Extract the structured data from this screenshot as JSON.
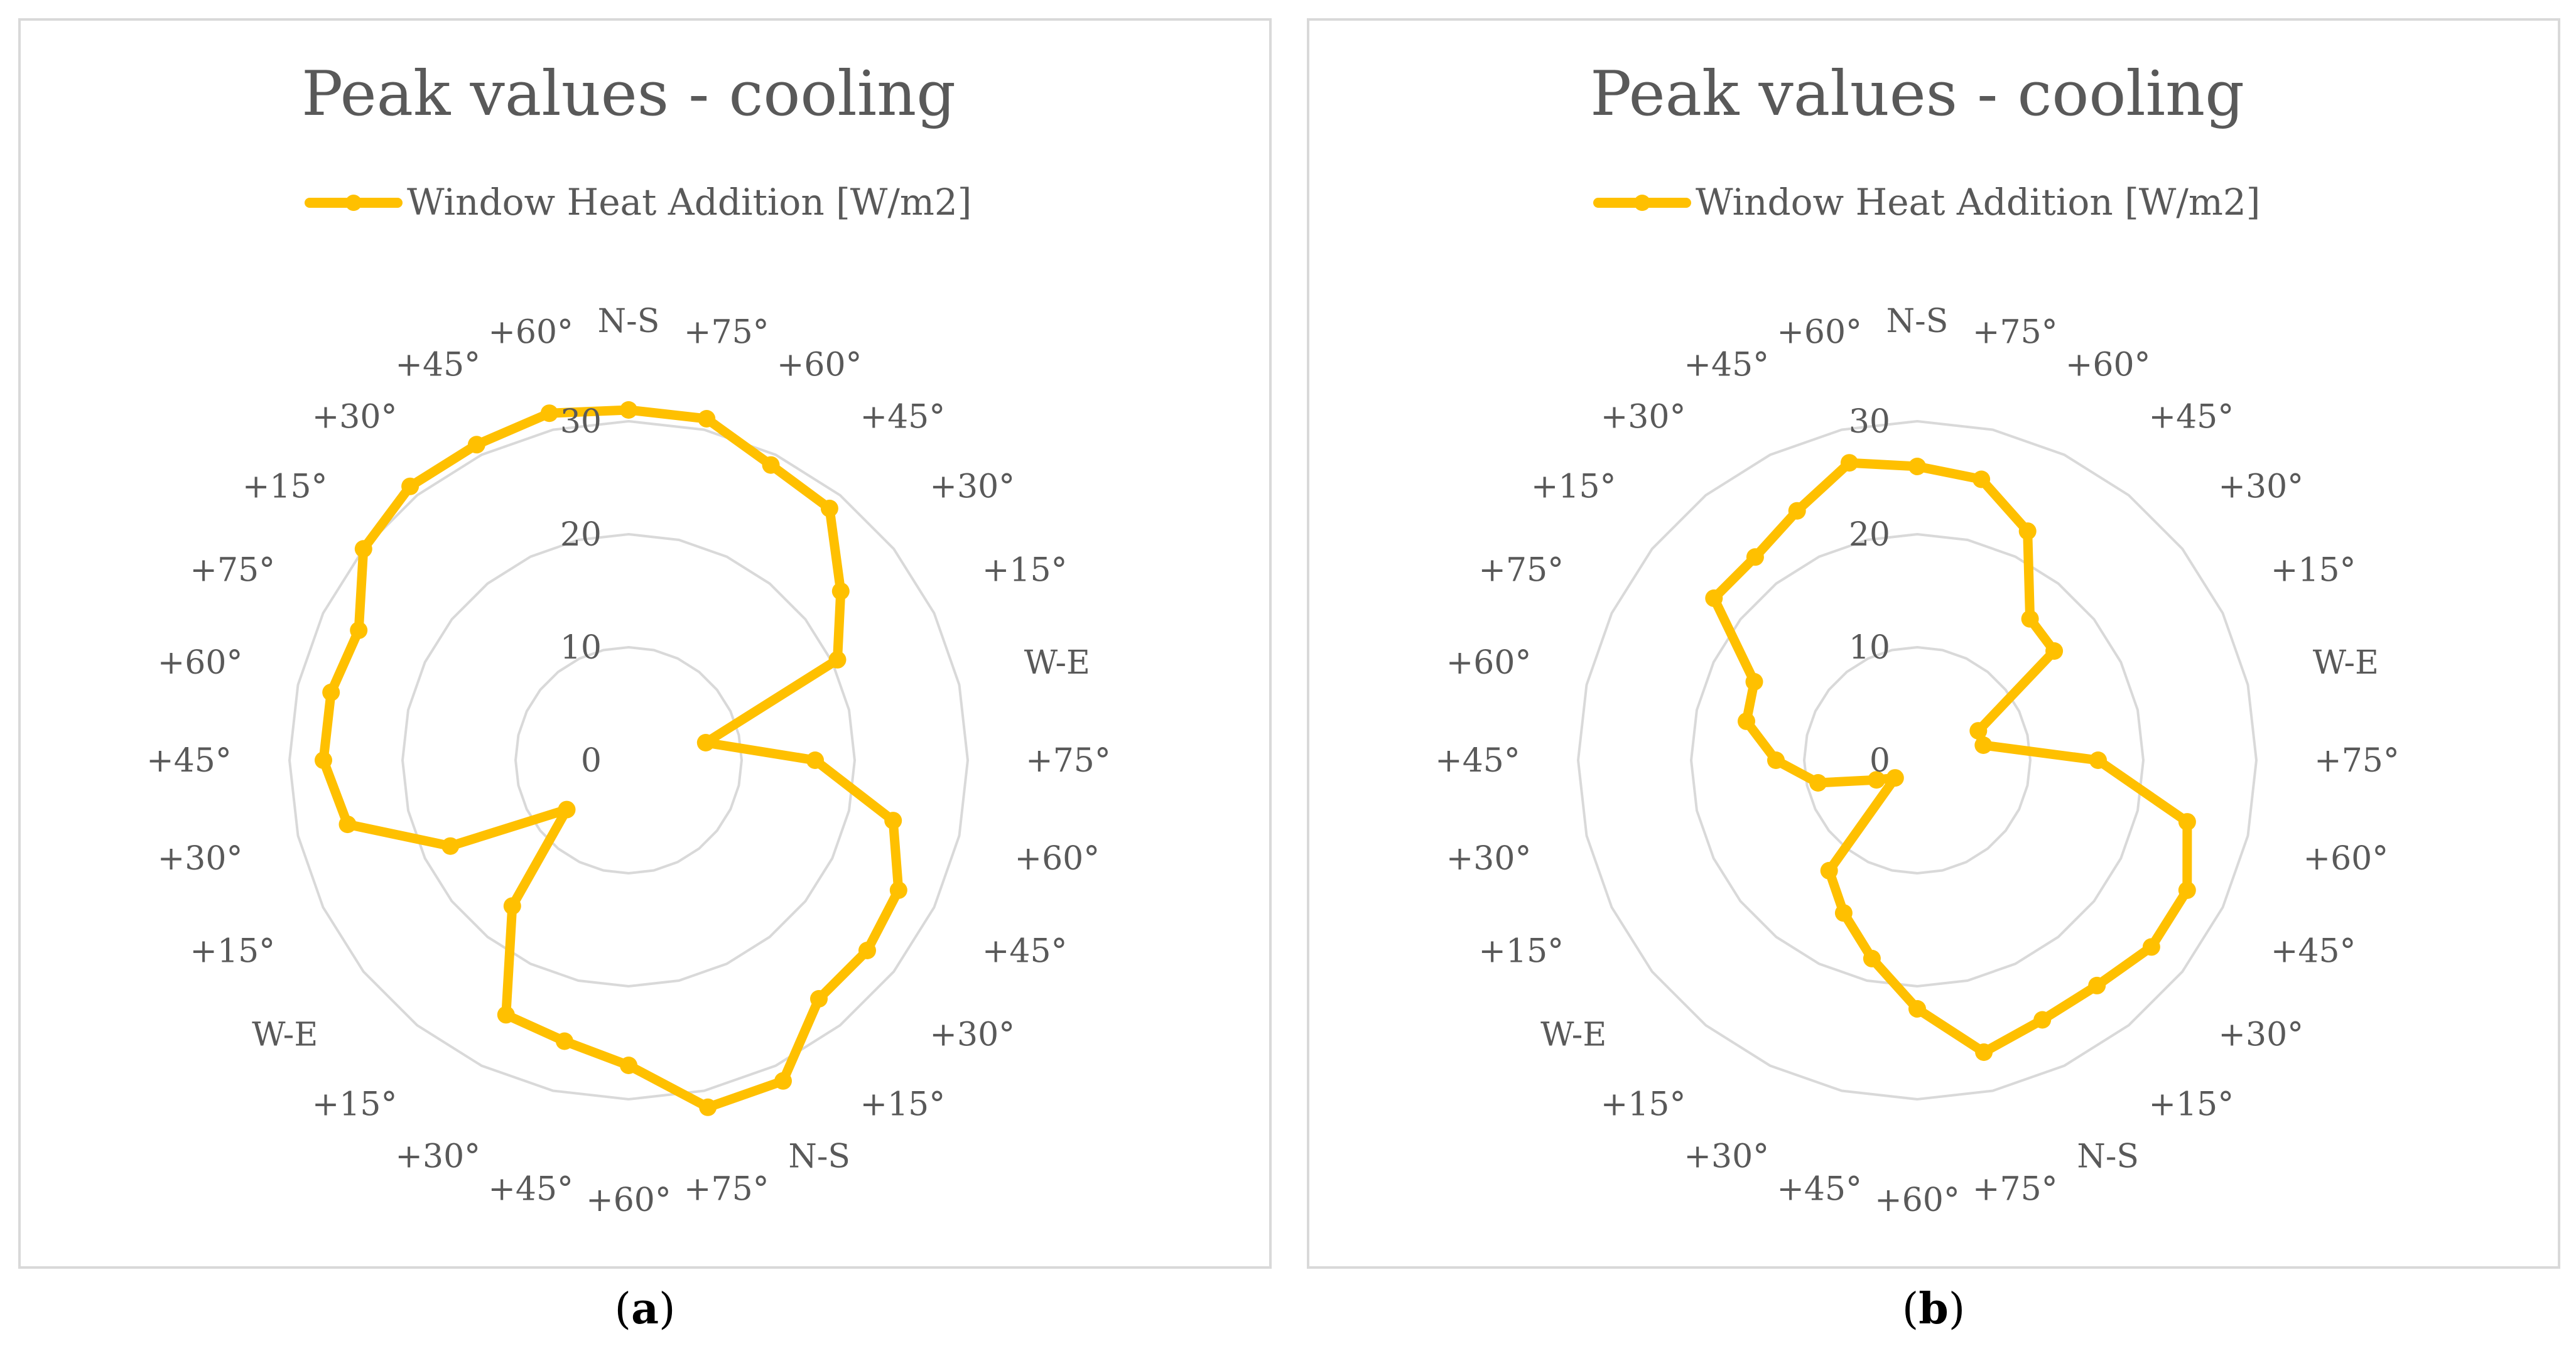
{
  "chart_data": [
    {
      "type": "radar",
      "title": "Peak values - cooling",
      "legend": [
        "Window Heat Addition [W/m2]"
      ],
      "legend_position": "top",
      "categories": [
        "N-S",
        "+75°",
        "+60°",
        "+45°",
        "+30°",
        "+15°",
        "W-E",
        "+75°",
        "+60°",
        "+45°",
        "+30°",
        "+15°",
        "N-S",
        "+75°",
        "+60°",
        "+45°",
        "+30°",
        "+15°",
        "W-E",
        "+15°",
        "+30°",
        "+45°",
        "+60°",
        "+75°",
        "+15°",
        "+30°",
        "+45°",
        "+60°"
      ],
      "series": [
        {
          "name": "Window Heat Addition [W/m2]",
          "color": "#FFC000",
          "values": [
            31,
            31,
            29,
            28.5,
            24,
            20.5,
            7,
            16.5,
            24,
            26.5,
            27,
            27,
            31.5,
            31.5,
            27,
            25.5,
            25,
            16.5,
            7,
            17.5,
            25.5,
            27,
            27,
            26.5,
            30,
            31,
            31,
            31.5
          ]
        }
      ],
      "rlim": [
        0,
        30
      ],
      "rticks": [
        "0",
        "10",
        "20",
        "30"
      ],
      "grid": true,
      "caption": "a"
    },
    {
      "type": "radar",
      "title": "Peak values - cooling",
      "legend": [
        "Window Heat Addition [W/m2]"
      ],
      "legend_position": "top",
      "categories": [
        "N-S",
        "+75°",
        "+60°",
        "+45°",
        "+30°",
        "+15°",
        "W-E",
        "+75°",
        "+60°",
        "+45°",
        "+30°",
        "+15°",
        "N-S",
        "+75°",
        "+60°",
        "+45°",
        "+30°",
        "+15°",
        "W-E",
        "+15°",
        "+30°",
        "+45°",
        "+60°",
        "+75°",
        "+15°",
        "+30°",
        "+45°",
        "+60°"
      ],
      "series": [
        {
          "name": "Window Heat Addition [W/m2]",
          "color": "#FFC000",
          "values": [
            26,
            25.5,
            22.5,
            16,
            15.5,
            6,
            6,
            16,
            24.5,
            26.5,
            26.5,
            25.5,
            25.5,
            26.5,
            22,
            18,
            15,
            12.5,
            2.5,
            4,
            9,
            12.5,
            15.5,
            16,
            23,
            23,
            24.5,
            27
          ]
        }
      ],
      "rlim": [
        0,
        30
      ],
      "rticks": [
        "0",
        "10",
        "20",
        "30"
      ],
      "grid": true,
      "caption": "b"
    }
  ],
  "captions": [
    {
      "open": "(",
      "letter": "a",
      "close": ")"
    },
    {
      "open": "(",
      "letter": "b",
      "close": ")"
    }
  ]
}
